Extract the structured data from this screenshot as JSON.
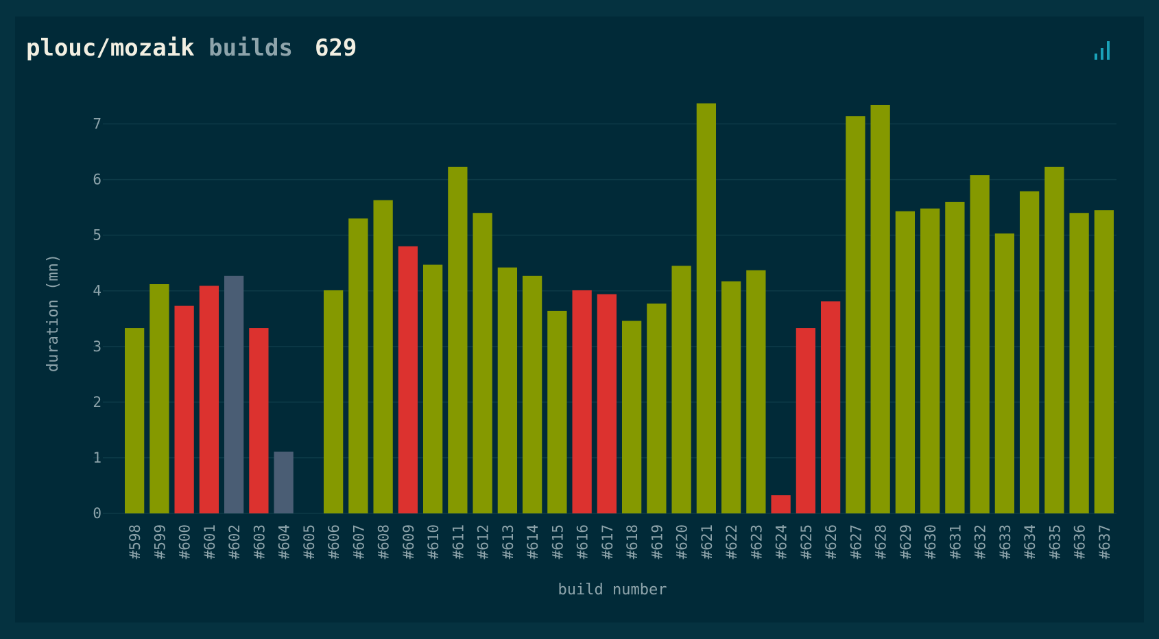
{
  "header": {
    "repository": "plouc/mozaik",
    "label": "builds",
    "count": "629"
  },
  "icons": {
    "chart": "bar-chart-icon"
  },
  "colors": {
    "success": "#859900",
    "failure": "#dc322f",
    "aborted": "#4a5d74",
    "grid": "#0d3a47",
    "accent": "#1aa2b8"
  },
  "chart_data": {
    "type": "bar",
    "title": "plouc/mozaik builds",
    "xlabel": "build number",
    "ylabel": "duration (mn)",
    "ylim": [
      0,
      7.5
    ],
    "yticks": [
      0,
      1,
      2,
      3,
      4,
      5,
      6,
      7
    ],
    "grid": true,
    "categories": [
      "#598",
      "#599",
      "#600",
      "#601",
      "#602",
      "#603",
      "#604",
      "#605",
      "#606",
      "#607",
      "#608",
      "#609",
      "#610",
      "#611",
      "#612",
      "#613",
      "#614",
      "#615",
      "#616",
      "#617",
      "#618",
      "#619",
      "#620",
      "#621",
      "#622",
      "#623",
      "#624",
      "#625",
      "#626",
      "#627",
      "#628",
      "#629",
      "#630",
      "#631",
      "#632",
      "#633",
      "#634",
      "#635",
      "#636",
      "#637"
    ],
    "values": [
      3.33,
      4.12,
      3.73,
      4.09,
      4.27,
      3.33,
      1.11,
      0,
      4.01,
      5.3,
      5.63,
      4.8,
      4.47,
      6.23,
      5.4,
      4.42,
      4.27,
      3.64,
      4.01,
      3.94,
      3.46,
      3.77,
      4.45,
      7.37,
      4.17,
      4.37,
      0.33,
      3.33,
      3.81,
      7.14,
      7.34,
      5.43,
      5.48,
      5.6,
      6.08,
      5.03,
      5.79,
      6.23,
      5.4,
      5.45
    ],
    "statuses": [
      "success",
      "success",
      "failure",
      "failure",
      "aborted",
      "failure",
      "aborted",
      "none",
      "success",
      "success",
      "success",
      "failure",
      "success",
      "success",
      "success",
      "success",
      "success",
      "success",
      "failure",
      "failure",
      "success",
      "success",
      "success",
      "success",
      "success",
      "success",
      "failure",
      "failure",
      "failure",
      "success",
      "success",
      "success",
      "success",
      "success",
      "success",
      "success",
      "success",
      "success",
      "success",
      "success"
    ]
  }
}
